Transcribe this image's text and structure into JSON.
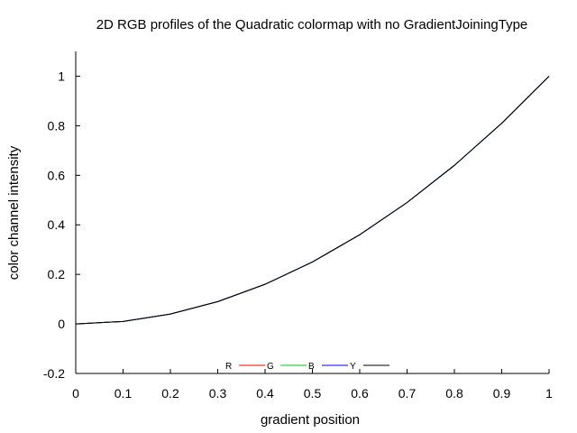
{
  "chart_data": {
    "type": "line",
    "title": "2D RGB profiles of the Quadratic colormap with no GradientJoiningType",
    "xlabel": "gradient position",
    "ylabel": "color channel intensity",
    "xlim": [
      0,
      1
    ],
    "ylim": [
      -0.2,
      1.1
    ],
    "x_ticks": [
      "0",
      "0.1",
      "0.2",
      "0.3",
      "0.4",
      "0.5",
      "0.6",
      "0.7",
      "0.8",
      "0.9",
      "1"
    ],
    "y_ticks": [
      "-0.2",
      "0",
      "0.2",
      "0.4",
      "0.6",
      "0.8",
      "1"
    ],
    "grid": false,
    "legend_position": "bottom-center",
    "series": [
      {
        "name": "R",
        "color": "#ff0000",
        "x": [
          0,
          0.1,
          0.2,
          0.3,
          0.4,
          0.5,
          0.6,
          0.7,
          0.8,
          0.9,
          1
        ],
        "y": [
          0,
          0.01,
          0.04,
          0.09,
          0.16,
          0.25,
          0.36,
          0.49,
          0.64,
          0.81,
          1
        ]
      },
      {
        "name": "G",
        "color": "#00cc00",
        "x": [
          0,
          0.1,
          0.2,
          0.3,
          0.4,
          0.5,
          0.6,
          0.7,
          0.8,
          0.9,
          1
        ],
        "y": [
          0,
          0.01,
          0.04,
          0.09,
          0.16,
          0.25,
          0.36,
          0.49,
          0.64,
          0.81,
          1
        ]
      },
      {
        "name": "B",
        "color": "#0000ff",
        "x": [
          0,
          0.1,
          0.2,
          0.3,
          0.4,
          0.5,
          0.6,
          0.7,
          0.8,
          0.9,
          1
        ],
        "y": [
          0,
          0.01,
          0.04,
          0.09,
          0.16,
          0.25,
          0.36,
          0.49,
          0.64,
          0.81,
          1
        ]
      },
      {
        "name": "Y",
        "color": "#000000",
        "x": [
          0,
          0.1,
          0.2,
          0.3,
          0.4,
          0.5,
          0.6,
          0.7,
          0.8,
          0.9,
          1
        ],
        "y": [
          0,
          0.01,
          0.04,
          0.09,
          0.16,
          0.25,
          0.36,
          0.49,
          0.64,
          0.81,
          1
        ]
      }
    ]
  }
}
